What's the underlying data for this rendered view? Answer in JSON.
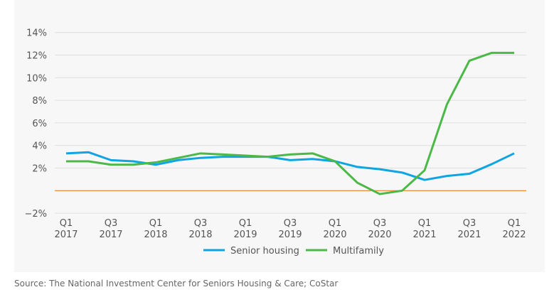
{
  "chart_data": {
    "type": "line",
    "title": "",
    "xlabel": "",
    "ylabel": "",
    "x": [
      "Q1 2017",
      "Q2 2017",
      "Q3 2017",
      "Q4 2017",
      "Q1 2018",
      "Q2 2018",
      "Q3 2018",
      "Q4 2018",
      "Q1 2019",
      "Q2 2019",
      "Q3 2019",
      "Q4 2019",
      "Q1 2020",
      "Q2 2020",
      "Q3 2020",
      "Q4 2020",
      "Q1 2021",
      "Q2 2021",
      "Q3 2021",
      "Q4 2021",
      "Q1 2022"
    ],
    "x_tick_labels": [
      [
        "Q1",
        "2017"
      ],
      [
        "Q3",
        "2017"
      ],
      [
        "Q1",
        "2018"
      ],
      [
        "Q3",
        "2018"
      ],
      [
        "Q1",
        "2019"
      ],
      [
        "Q3",
        "2019"
      ],
      [
        "Q1",
        "2020"
      ],
      [
        "Q3",
        "2020"
      ],
      [
        "Q1",
        "2021"
      ],
      [
        "Q3",
        "2021"
      ],
      [
        "Q1",
        "2022"
      ]
    ],
    "y_tick_labels": [
      "14%",
      "12%",
      "10%",
      "8%",
      "6%",
      "4%",
      "2%",
      "−2%"
    ],
    "y_ticks": [
      14,
      12,
      10,
      8,
      6,
      4,
      2,
      -2
    ],
    "ylim": [
      -2,
      14
    ],
    "grid": true,
    "zero_line_color": "#f07d1e",
    "legend_position": "bottom",
    "series": [
      {
        "name": "Senior housing",
        "color": "#0ea5e0",
        "values": [
          3.3,
          3.4,
          2.7,
          2.6,
          2.3,
          2.7,
          2.9,
          3.0,
          3.0,
          3.0,
          2.7,
          2.8,
          2.6,
          2.1,
          1.9,
          1.6,
          0.95,
          1.3,
          1.5,
          2.35,
          3.3
        ]
      },
      {
        "name": "Multifamily",
        "color": "#4cb847",
        "values": [
          2.6,
          2.6,
          2.3,
          2.3,
          2.5,
          2.9,
          3.3,
          3.2,
          3.1,
          3.0,
          3.2,
          3.3,
          2.6,
          0.7,
          -0.3,
          0.0,
          1.8,
          7.65,
          11.5,
          12.2,
          12.2
        ]
      }
    ]
  },
  "source": "Source: The National Investment Center for Seniors Housing & Care; CoStar"
}
